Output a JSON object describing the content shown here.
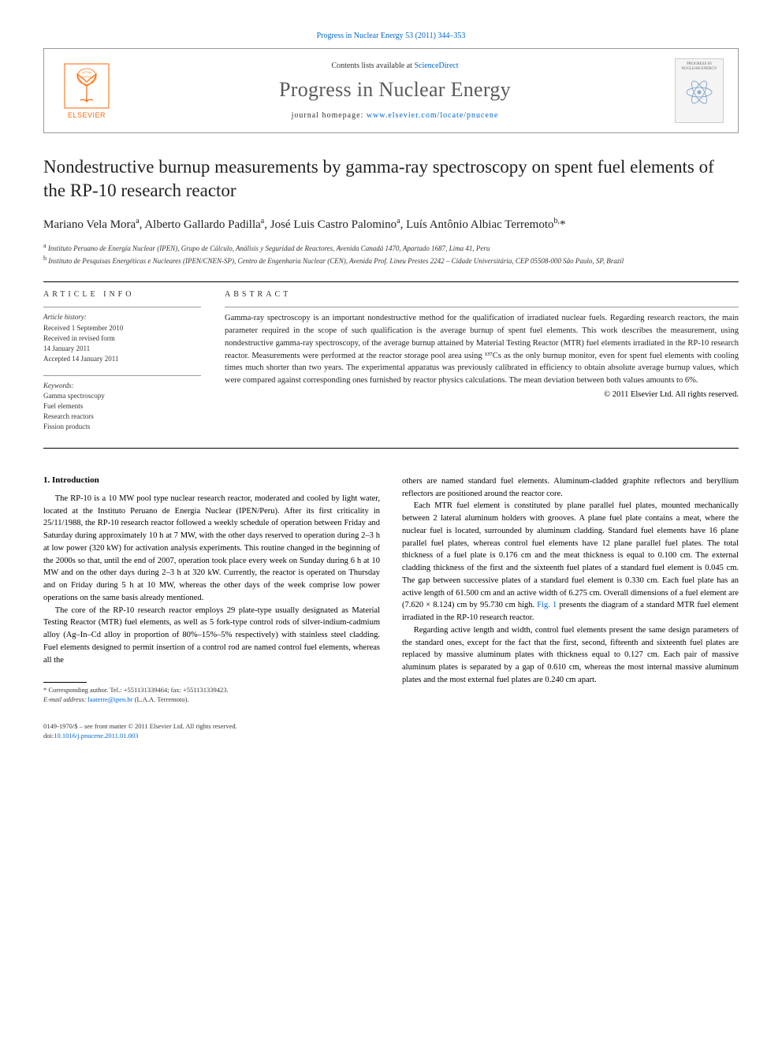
{
  "citation": "Progress in Nuclear Energy 53 (2011) 344–353",
  "header": {
    "contents_prefix": "Contents lists available at ",
    "contents_link": "ScienceDirect",
    "journal": "Progress in Nuclear Energy",
    "homepage_prefix": "journal homepage: ",
    "homepage_url": "www.elsevier.com/locate/pnucene",
    "elsevier_label": "ELSEVIER",
    "cover_title": "PROGRESS IN NUCLEAR ENERGY"
  },
  "title": "Nondestructive burnup measurements by gamma-ray spectroscopy on spent fuel elements of the RP-10 research reactor",
  "authors_html": "Mariano Vela Mora<sup>a</sup>, Alberto Gallardo Padilla<sup>a</sup>, José Luis Castro Palomino<sup>a</sup>, Luís Antônio Albiac Terremoto<sup>b,</sup>*",
  "affiliations": {
    "a": "Instituto Peruano de Energía Nuclear (IPEN), Grupo de Cálculo, Análisis y Seguridad de Reactores, Avenida Canadá 1470, Apartado 1687, Lima 41, Peru",
    "b": "Instituto de Pesquisas Energéticas e Nucleares (IPEN/CNEN-SP), Centro de Engenharia Nuclear (CEN), Avenida Prof. Lineu Prestes 2242 – Cidade Universitária, CEP 05508-000 São Paulo, SP, Brazil"
  },
  "article_info": {
    "label": "ARTICLE INFO",
    "history_head": "Article history:",
    "received": "Received 1 September 2010",
    "revised1": "Received in revised form",
    "revised2": "14 January 2011",
    "accepted": "Accepted 14 January 2011",
    "keywords_head": "Keywords:",
    "keywords": [
      "Gamma spectroscopy",
      "Fuel elements",
      "Research reactors",
      "Fission products"
    ]
  },
  "abstract": {
    "label": "ABSTRACT",
    "text": "Gamma-ray spectroscopy is an important nondestructive method for the qualification of irradiated nuclear fuels. Regarding research reactors, the main parameter required in the scope of such qualification is the average burnup of spent fuel elements. This work describes the measurement, using nondestructive gamma-ray spectroscopy, of the average burnup attained by Material Testing Reactor (MTR) fuel elements irradiated in the RP-10 research reactor. Measurements were performed at the reactor storage pool area using ¹³⁷Cs as the only burnup monitor, even for spent fuel elements with cooling times much shorter than two years. The experimental apparatus was previously calibrated in efficiency to obtain absolute average burnup values, which were compared against corresponding ones furnished by reactor physics calculations. The mean deviation between both values amounts to 6%.",
    "copyright": "© 2011 Elsevier Ltd. All rights reserved."
  },
  "body": {
    "section_num": "1.",
    "section_title": "Introduction",
    "col1_p1": "The RP-10 is a 10 MW pool type nuclear research reactor, moderated and cooled by light water, located at the Instituto Peruano de Energía Nuclear (IPEN/Peru). After its first criticality in 25/11/1988, the RP-10 research reactor followed a weekly schedule of operation between Friday and Saturday during approximately 10 h at 7 MW, with the other days reserved to operation during 2–3 h at low power (320 kW) for activation analysis experiments. This routine changed in the beginning of the 2000s so that, until the end of 2007, operation took place every week on Sunday during 6 h at 10 MW and on the other days during 2–3 h at 320 kW. Currently, the reactor is operated on Thursday and on Friday during 5 h at 10 MW, whereas the other days of the week comprise low power operations on the same basis already mentioned.",
    "col1_p2": "The core of the RP-10 research reactor employs 29 plate-type usually designated as Material Testing Reactor (MTR) fuel elements, as well as 5 fork-type control rods of silver-indium-cadmium alloy (Ag–In–Cd alloy in proportion of 80%–15%–5% respectively) with stainless steel cladding. Fuel elements designed to permit insertion of a control rod are named control fuel elements, whereas all the",
    "col2_p1": "others are named standard fuel elements. Aluminum-cladded graphite reflectors and beryllium reflectors are positioned around the reactor core.",
    "col2_p2a": "Each MTR fuel element is constituted by plane parallel fuel plates, mounted mechanically between 2 lateral aluminum holders with grooves. A plane fuel plate contains a meat, where the nuclear fuel is located, surrounded by aluminum cladding. Standard fuel elements have 16 plane parallel fuel plates, whereas control fuel elements have 12 plane parallel fuel plates. The total thickness of a fuel plate is 0.176 cm and the meat thickness is equal to 0.100 cm. The external cladding thickness of the first and the sixteenth fuel plates of a standard fuel element is 0.045 cm. The gap between successive plates of a standard fuel element is 0.330 cm. Each fuel plate has an active length of 61.500 cm and an active width of 6.275 cm. Overall dimensions of a fuel element are (7.620 × 8.124) cm by 95.730 cm high. ",
    "fig_link": "Fig. 1",
    "col2_p2b": " presents the diagram of a standard MTR fuel element irradiated in the RP-10 research reactor.",
    "col2_p3": "Regarding active length and width, control fuel elements present the same design parameters of the standard ones, except for the fact that the first, second, fifteenth and sixteenth fuel plates are replaced by massive aluminum plates with thickness equal to 0.127 cm. Each pair of massive aluminum plates is separated by a gap of 0.610 cm, whereas the most internal massive aluminum plates and the most external fuel plates are 0.240 cm apart."
  },
  "footnote": {
    "corr": "* Corresponding author. Tel.: +551131339464; fax: +551131339423.",
    "email_label": "E-mail address: ",
    "email": "laaterre@ipen.br",
    "email_tail": " (L.A.A. Terremoto)."
  },
  "bottom": {
    "line1": "0149-1970/$ – see front matter © 2011 Elsevier Ltd. All rights reserved.",
    "doi_prefix": "doi:",
    "doi": "10.1016/j.pnucene.2011.01.003"
  },
  "colors": {
    "link": "#0066cc",
    "elsevier_orange": "#ff6600",
    "journal_gray": "#5a5a5a"
  }
}
